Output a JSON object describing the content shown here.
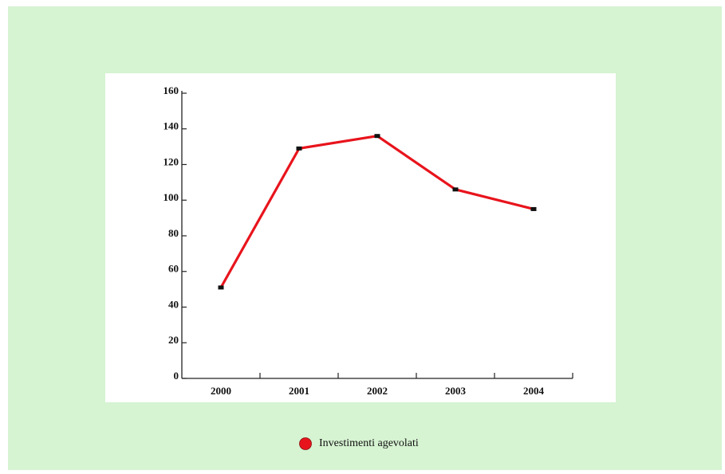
{
  "chart_data": {
    "type": "line",
    "categories": [
      "2000",
      "2001",
      "2002",
      "2003",
      "2004"
    ],
    "series": [
      {
        "name": "Investimenti agevolati",
        "color": "#e8141c",
        "values": [
          51,
          129,
          136,
          106,
          95
        ]
      }
    ],
    "ylim": [
      0,
      160
    ],
    "yticks": [
      0,
      20,
      40,
      60,
      80,
      100,
      120,
      140,
      160
    ],
    "legend": "bottom"
  }
}
